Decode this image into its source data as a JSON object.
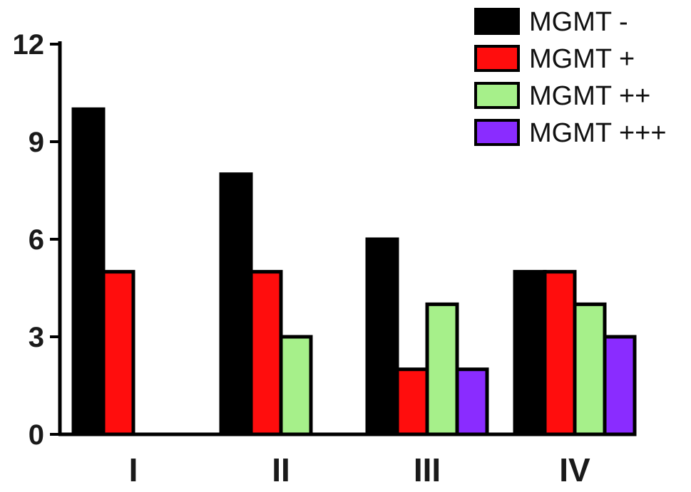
{
  "chart_data": {
    "type": "bar",
    "categories": [
      "I",
      "II",
      "III",
      "IV"
    ],
    "series": [
      {
        "name": "MGMT -",
        "color": "#000000",
        "values": [
          10,
          8,
          6,
          5
        ]
      },
      {
        "name": "MGMT +",
        "color": "#ff0d0d",
        "values": [
          5,
          5,
          2,
          5
        ]
      },
      {
        "name": "MGMT ++",
        "color": "#a6f08a",
        "values": [
          0,
          3,
          4,
          4
        ]
      },
      {
        "name": "MGMT +++",
        "color": "#8a2cff",
        "values": [
          0,
          0,
          2,
          3
        ]
      }
    ],
    "yticks": [
      "0",
      "3",
      "6",
      "9",
      "12"
    ],
    "ylim": [
      0,
      12
    ],
    "title": "",
    "xlabel": "",
    "ylabel": "",
    "legend_position": "top-right"
  }
}
